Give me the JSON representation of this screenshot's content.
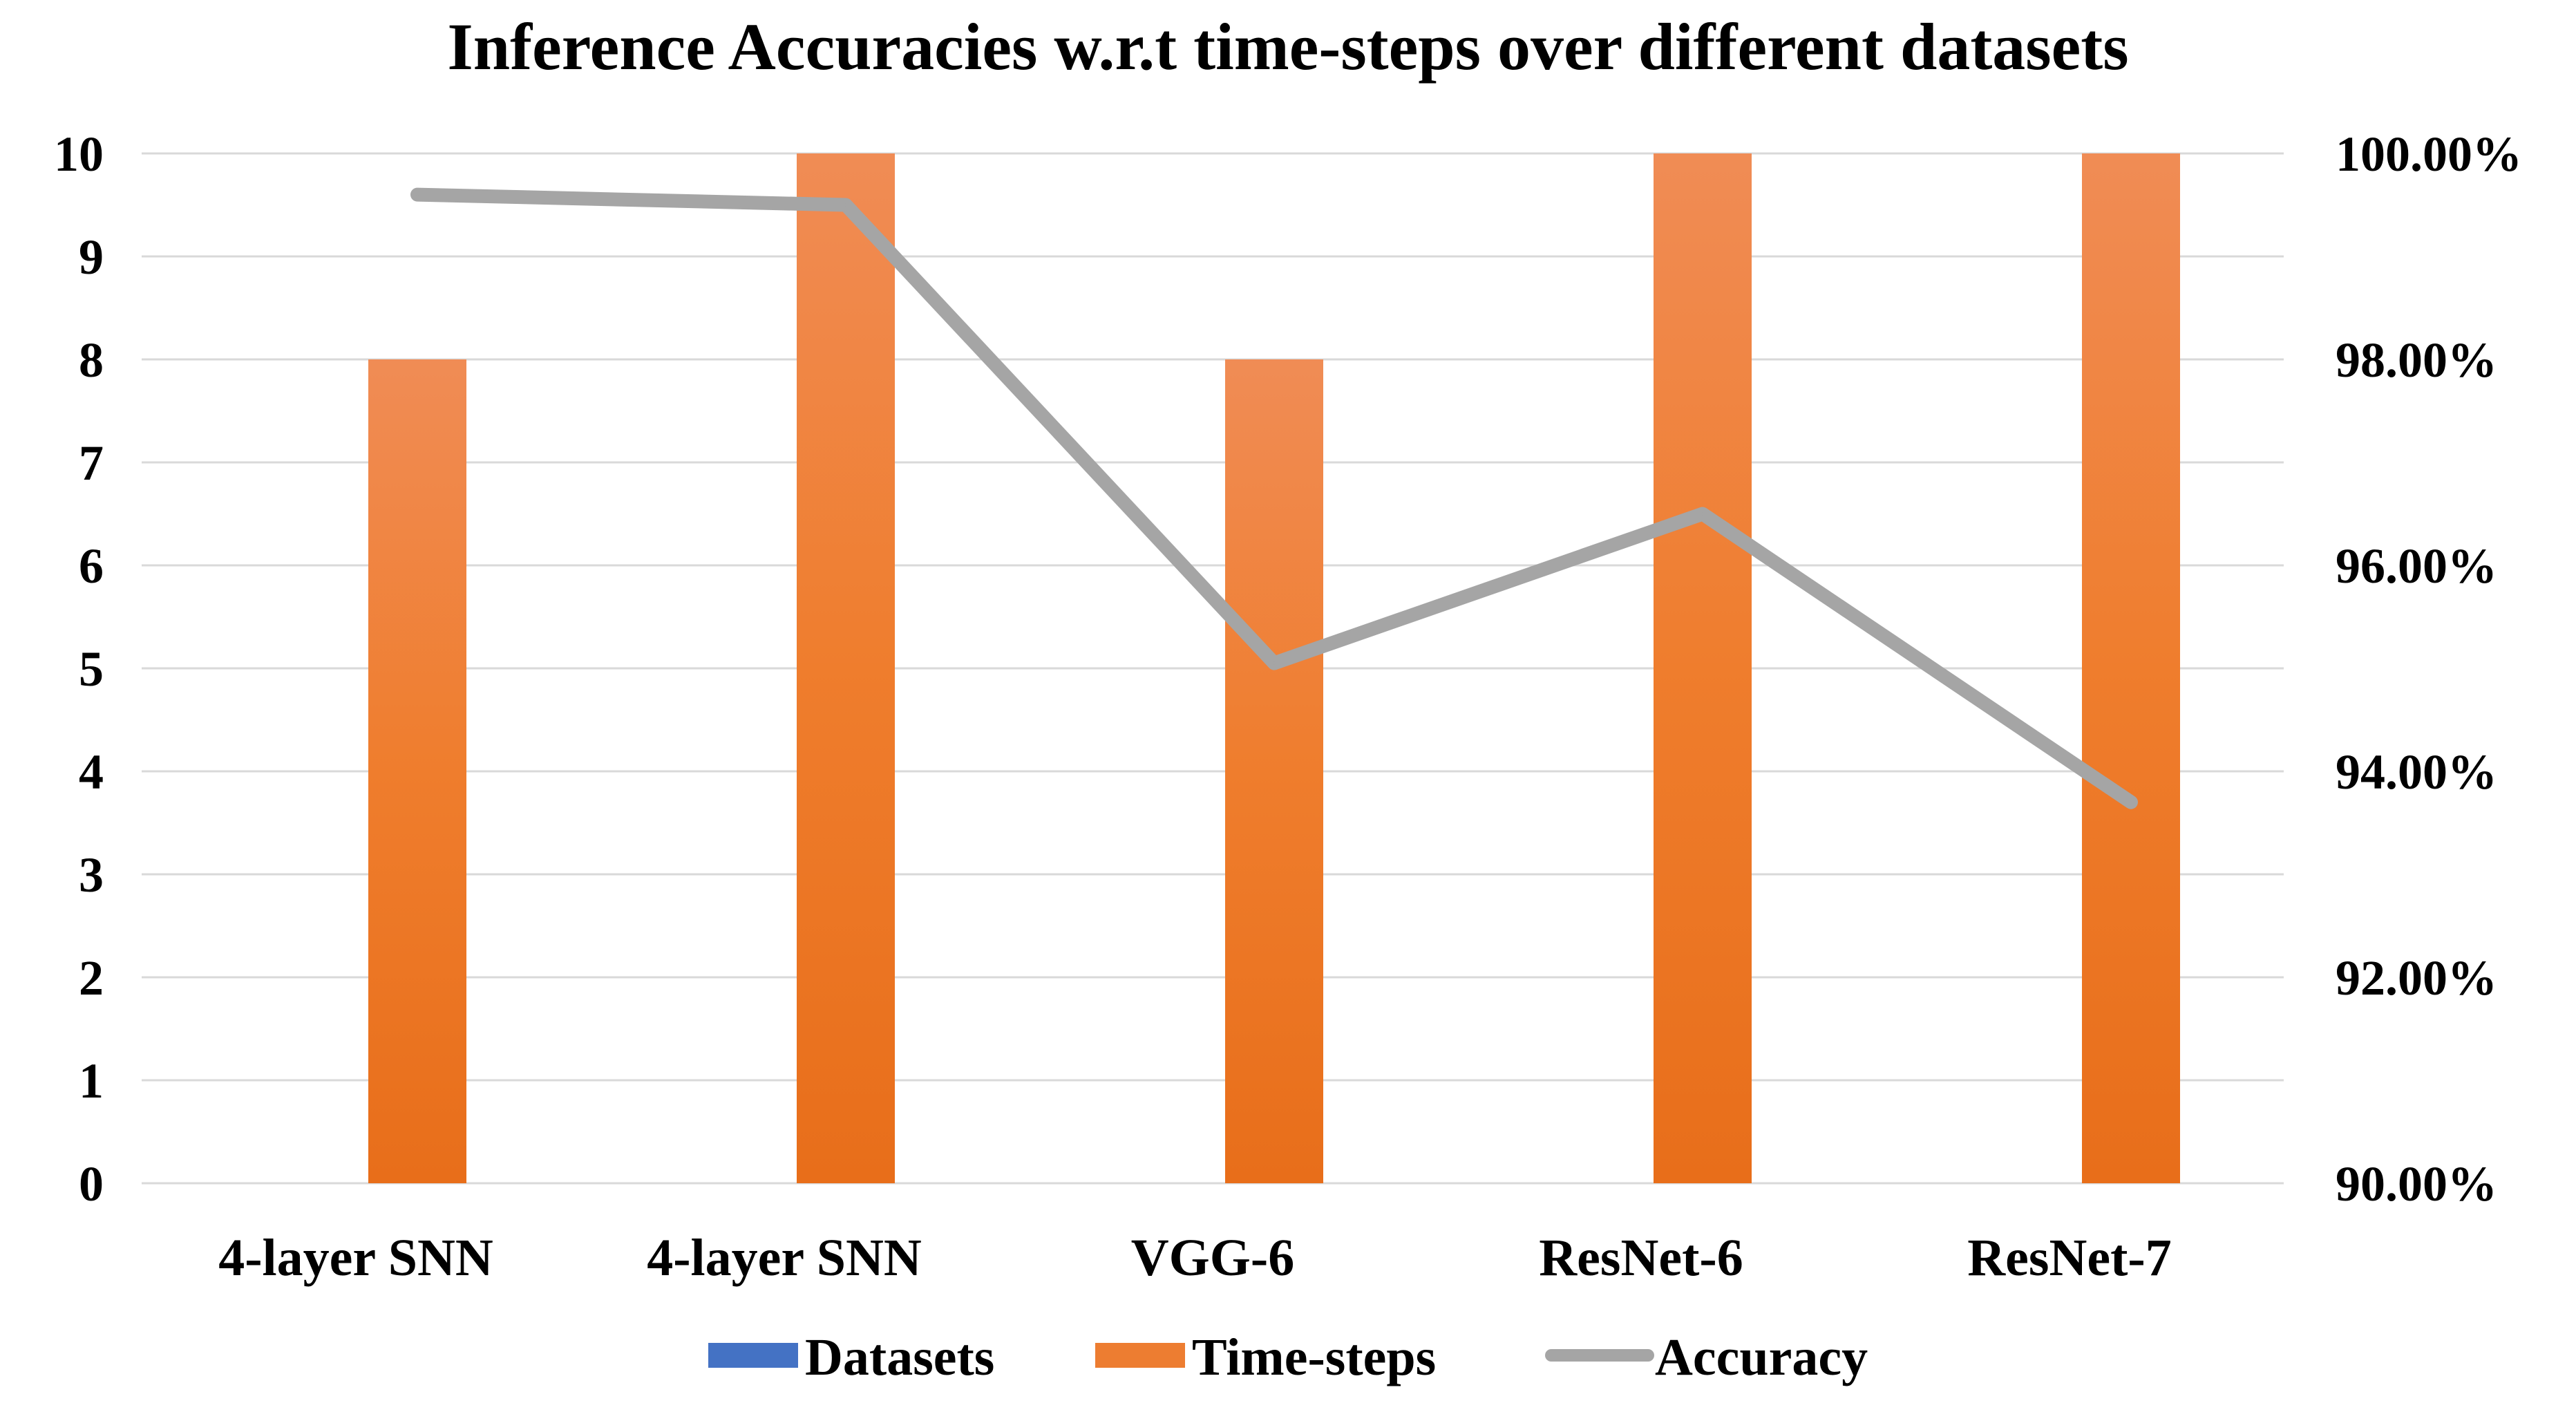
{
  "chart_data": {
    "type": "bar",
    "title": "Inference Accuracies w.r.t time-steps over different datasets",
    "categories": [
      "4-layer SNN",
      "4-layer SNN",
      "VGG-6",
      "ResNet-6",
      "ResNet-7"
    ],
    "series": [
      {
        "name": "Datasets",
        "type": "bar",
        "axis": "left",
        "color": "#4472c4",
        "values": [
          0,
          0,
          0,
          0,
          0
        ]
      },
      {
        "name": "Time-steps",
        "type": "bar",
        "axis": "left",
        "color": "#ed7d31",
        "values": [
          8,
          10,
          8,
          10,
          10
        ]
      },
      {
        "name": "Accuracy",
        "type": "line",
        "axis": "right",
        "color": "#a5a5a5",
        "values": [
          99.6,
          99.5,
          95.05,
          96.5,
          93.7
        ]
      }
    ],
    "ylim_left": [
      0,
      10
    ],
    "ylim_right": [
      90,
      100
    ],
    "yticks_left": [
      "0",
      "1",
      "2",
      "3",
      "4",
      "5",
      "6",
      "7",
      "8",
      "9",
      "10"
    ],
    "yticks_right": [
      "90.00%",
      "92.00%",
      "94.00%",
      "96.00%",
      "98.00%",
      "100.00%"
    ],
    "grid": true,
    "legend_position": "bottom"
  }
}
